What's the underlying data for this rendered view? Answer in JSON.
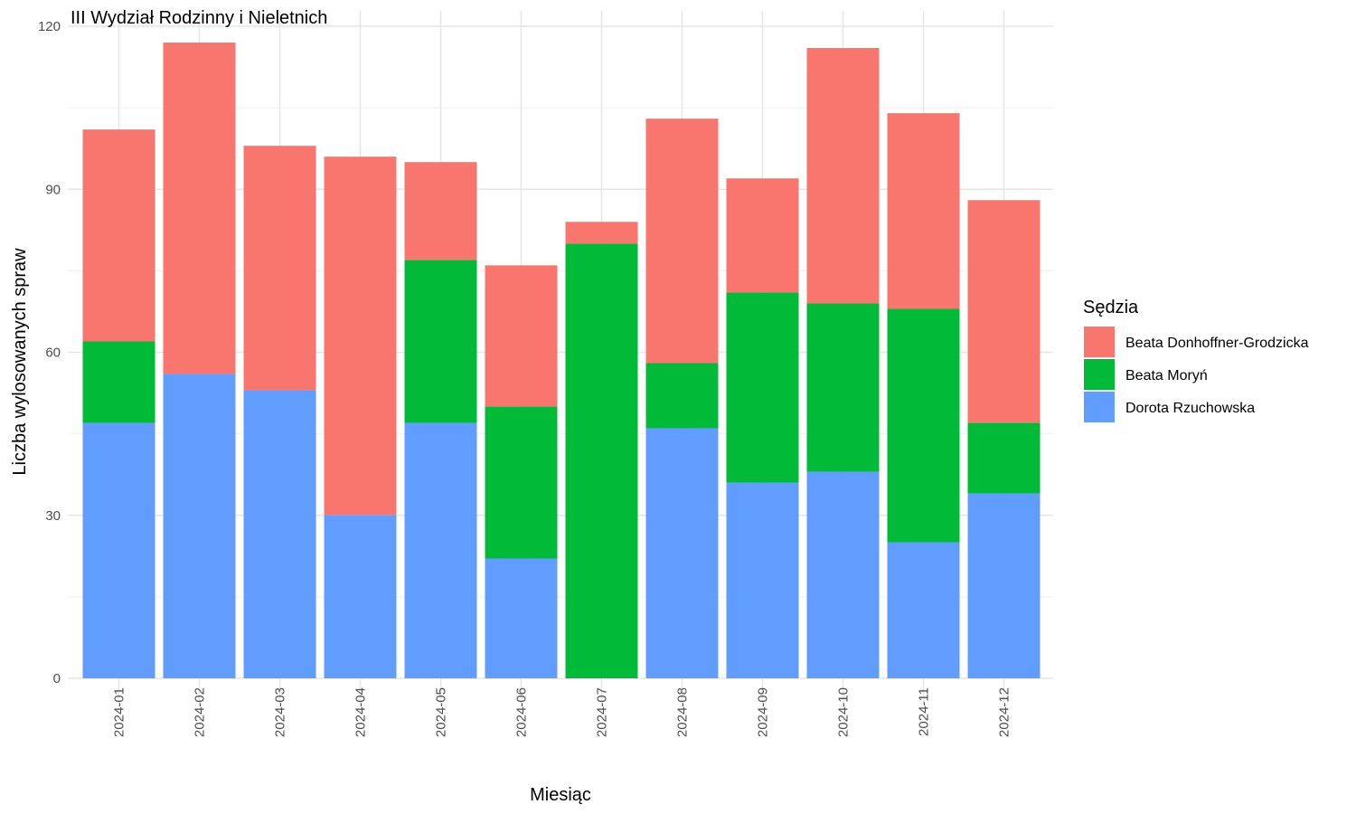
{
  "chart_data": {
    "type": "bar",
    "stacked": true,
    "title": "III Wydział Rodzinny i Nieletnich",
    "xlabel": "Miesiąc",
    "ylabel": "Liczba wylosowanych spraw",
    "ylim": [
      0,
      120
    ],
    "yticks": [
      0,
      30,
      60,
      90,
      120
    ],
    "grid": true,
    "legend_position": "right",
    "legend_title": "Sędzia",
    "categories": [
      "2024-01",
      "2024-02",
      "2024-03",
      "2024-04",
      "2024-05",
      "2024-06",
      "2024-07",
      "2024-08",
      "2024-09",
      "2024-10",
      "2024-11",
      "2024-12"
    ],
    "series": [
      {
        "name": "Beata Donhoffner-Grodzicka",
        "color": "#F8766D",
        "values": [
          39,
          61,
          45,
          66,
          18,
          26,
          4,
          45,
          21,
          47,
          36,
          41
        ]
      },
      {
        "name": "Beata Moryń",
        "color": "#00BA38",
        "values": [
          15,
          0,
          0,
          0,
          30,
          28,
          80,
          12,
          35,
          31,
          43,
          13
        ]
      },
      {
        "name": "Dorota Rzuchowska",
        "color": "#619CFF",
        "values": [
          47,
          56,
          53,
          30,
          47,
          22,
          0,
          46,
          36,
          38,
          25,
          34
        ]
      }
    ]
  }
}
